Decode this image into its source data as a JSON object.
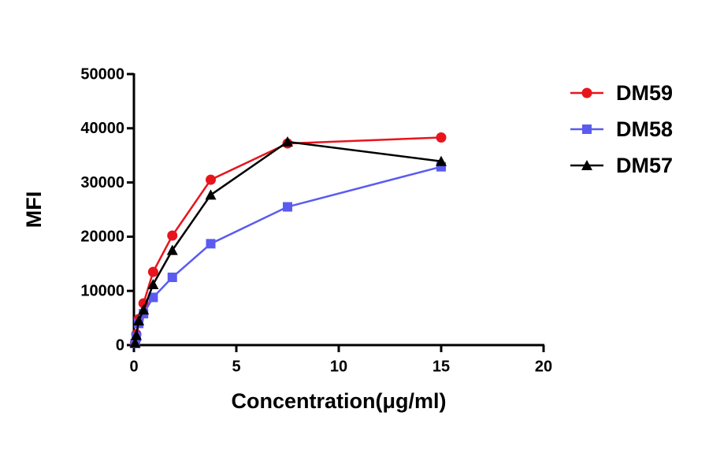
{
  "chart_data": {
    "type": "line",
    "x_label": "Concentration(μg/ml)",
    "y_label": "MFI",
    "x": [
      0.0586,
      0.117,
      0.234,
      0.469,
      0.938,
      1.875,
      3.75,
      7.5,
      15
    ],
    "series": [
      {
        "name": "DM59",
        "color": "#e8141c",
        "marker": "circle",
        "values": [
          500,
          2000,
          4800,
          7700,
          13500,
          20200,
          30500,
          37200,
          38300
        ]
      },
      {
        "name": "DM58",
        "color": "#5b5bf0",
        "marker": "square",
        "values": [
          300,
          1500,
          4000,
          5800,
          8800,
          12500,
          18700,
          25500,
          32900
        ]
      },
      {
        "name": "DM57",
        "color": "#000000",
        "marker": "triangle",
        "values": [
          400,
          1800,
          4500,
          6500,
          11200,
          17500,
          27700,
          37500,
          33900
        ]
      }
    ],
    "xlim": [
      0,
      20
    ],
    "xticks": [
      0,
      5,
      10,
      15,
      20
    ],
    "ylim": [
      0,
      50000
    ],
    "yticks": [
      0,
      10000,
      20000,
      30000,
      40000,
      50000
    ],
    "legend": "right"
  }
}
